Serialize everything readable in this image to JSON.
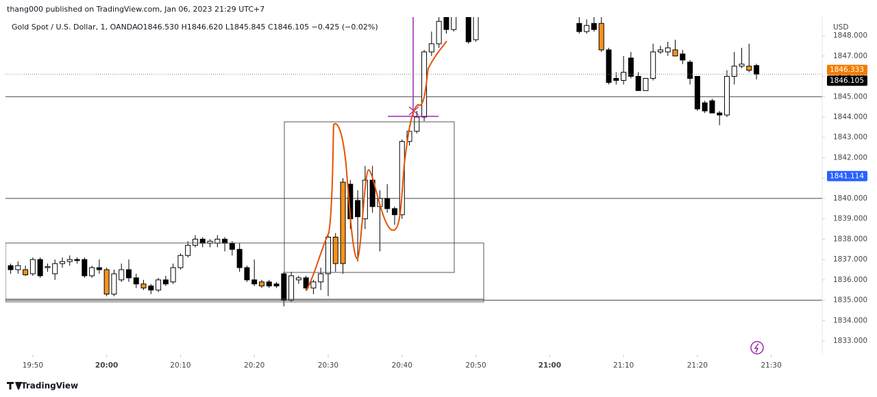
{
  "header": {
    "publisher": "thang000 published on TradingView.com, Jan 06, 2023 21:29 UTC+7",
    "symbol": "Gold Spot / U.S. Dollar, 1, OANDA",
    "ohlc": "O1846.530  H1846.620  L1845.845  C1846.105  −0.425 (−0.02%)"
  },
  "footer": {
    "brand": "TradingView"
  },
  "chart_data": {
    "type": "candlestick",
    "y_unit": "USD",
    "x": [
      1187,
      1188,
      1189,
      1190,
      1191,
      1192,
      1193,
      1194,
      1195,
      1196,
      1197,
      1198,
      1199,
      1200,
      1201,
      1202,
      1203,
      1204,
      1205,
      1206,
      1207,
      1208,
      1209,
      1210,
      1211,
      1212,
      1213,
      1214,
      1215,
      1216,
      1217,
      1218,
      1219,
      1220,
      1221,
      1222,
      1223,
      1224,
      1225,
      1226,
      1227,
      1228,
      1229,
      1230,
      1231,
      1232,
      1233,
      1234,
      1235,
      1236,
      1237,
      1238,
      1239,
      1240,
      1241,
      1242,
      1243,
      1244,
      1245,
      1246,
      1247,
      1249,
      1250,
      1264,
      1265,
      1266,
      1267,
      1268,
      1269,
      1270,
      1271,
      1272,
      1273,
      1274,
      1275,
      1276,
      1277,
      1278,
      1279,
      1280,
      1281,
      1282,
      1283,
      1284,
      1285,
      1286,
      1287,
      1288
    ],
    "open": [
      1836.7,
      1836.5,
      1836.5,
      1836.3,
      1837.0,
      1836.6,
      1836.3,
      1836.8,
      1836.9,
      1837.0,
      1837.0,
      1836.2,
      1836.6,
      1836.5,
      1835.3,
      1836.0,
      1836.5,
      1836.1,
      1835.8,
      1835.7,
      1835.5,
      1836.0,
      1835.9,
      1836.6,
      1837.2,
      1837.7,
      1838.0,
      1837.8,
      1837.8,
      1838.0,
      1837.8,
      1837.5,
      1836.6,
      1836.0,
      1835.9,
      1835.9,
      1835.8,
      1836.3,
      1835.0,
      1836.0,
      1836.1,
      1835.6,
      1835.9,
      1836.3,
      1838.1,
      1836.8,
      1840.7,
      1839.9,
      1839.0,
      1840.9,
      1839.6,
      1840.0,
      1839.5,
      1839.2,
      1842.8,
      1843.3,
      1844.0,
      1847.2,
      1847.6,
      1848.9,
      1848.3,
      1849.2,
      1847.8,
      1848.6,
      1848.2,
      1848.6,
      1848.6,
      1847.3,
      1845.9,
      1845.8,
      1846.9,
      1846.0,
      1845.3,
      1845.9,
      1847.2,
      1847.2,
      1847.3,
      1847.1,
      1846.7,
      1846.0,
      1844.7,
      1844.8,
      1844.2,
      1844.1,
      1846.0,
      1846.5,
      1846.5,
      1846.53
    ],
    "high": [
      1836.8,
      1836.9,
      1836.7,
      1837.1,
      1837.1,
      1836.8,
      1837.0,
      1837.1,
      1837.2,
      1837.1,
      1837.1,
      1836.7,
      1837.0,
      1836.6,
      1836.5,
      1836.8,
      1837.0,
      1836.3,
      1836.0,
      1835.8,
      1836.1,
      1836.2,
      1836.8,
      1837.3,
      1837.9,
      1838.2,
      1838.1,
      1838.0,
      1838.2,
      1838.1,
      1837.9,
      1837.8,
      1836.7,
      1837.0,
      1836.0,
      1836.0,
      1835.9,
      1836.4,
      1836.4,
      1836.2,
      1836.2,
      1836.0,
      1836.6,
      1838.2,
      1838.3,
      1841.0,
      1840.9,
      1840.4,
      1841.6,
      1841.6,
      1840.4,
      1840.7,
      1839.6,
      1842.9,
      1843.6,
      1844.3,
      1847.3,
      1848.2,
      1849.5,
      1849.5,
      1849.5,
      1849.5,
      1849.5,
      1849.0,
      1848.8,
      1849.0,
      1849.0,
      1847.4,
      1846.2,
      1847.0,
      1847.2,
      1846.2,
      1845.9,
      1847.6,
      1847.5,
      1847.7,
      1847.8,
      1847.3,
      1846.8,
      1846.0,
      1844.8,
      1844.9,
      1844.3,
      1846.3,
      1847.2,
      1847.4,
      1847.6,
      1846.62
    ],
    "low": [
      1836.3,
      1836.3,
      1836.2,
      1836.2,
      1836.1,
      1836.4,
      1836.0,
      1836.6,
      1836.7,
      1836.8,
      1836.1,
      1836.1,
      1836.3,
      1835.2,
      1835.2,
      1835.9,
      1835.9,
      1835.6,
      1835.5,
      1835.3,
      1835.4,
      1835.7,
      1835.8,
      1836.5,
      1837.1,
      1837.6,
      1837.6,
      1837.6,
      1837.6,
      1837.4,
      1837.2,
      1836.4,
      1835.9,
      1835.7,
      1835.6,
      1835.6,
      1835.6,
      1834.7,
      1834.9,
      1835.8,
      1835.5,
      1835.3,
      1835.5,
      1835.2,
      1836.4,
      1836.3,
      1838.5,
      1836.9,
      1838.5,
      1839.3,
      1837.4,
      1839.3,
      1838.7,
      1839.0,
      1842.6,
      1843.2,
      1843.8,
      1847.0,
      1847.4,
      1848.1,
      1848.2,
      1847.6,
      1847.7,
      1848.1,
      1848.1,
      1848.2,
      1847.2,
      1845.6,
      1845.6,
      1845.6,
      1845.9,
      1845.3,
      1845.3,
      1845.8,
      1847.1,
      1847.0,
      1847.0,
      1846.6,
      1845.6,
      1844.3,
      1844.2,
      1844.2,
      1843.6,
      1844.0,
      1845.6,
      1846.4,
      1846.2,
      1845.845
    ],
    "close": [
      1836.5,
      1836.7,
      1836.25,
      1837.0,
      1836.2,
      1836.65,
      1836.8,
      1836.9,
      1837.0,
      1836.95,
      1836.2,
      1836.6,
      1836.5,
      1835.3,
      1836.3,
      1836.5,
      1836.1,
      1835.8,
      1835.6,
      1835.5,
      1836.0,
      1835.8,
      1836.6,
      1837.2,
      1837.7,
      1838.0,
      1837.8,
      1837.9,
      1838.0,
      1837.8,
      1837.5,
      1836.6,
      1836.0,
      1835.8,
      1835.7,
      1835.7,
      1835.7,
      1835.0,
      1836.2,
      1836.1,
      1835.6,
      1835.9,
      1836.3,
      1838.1,
      1836.8,
      1840.8,
      1839.0,
      1839.1,
      1840.9,
      1839.6,
      1840.0,
      1839.5,
      1839.2,
      1842.8,
      1843.3,
      1844.0,
      1847.2,
      1847.6,
      1848.7,
      1848.3,
      1849.0,
      1847.7,
      1849.3,
      1848.2,
      1848.5,
      1848.3,
      1847.3,
      1845.7,
      1845.8,
      1846.2,
      1846.0,
      1845.3,
      1845.9,
      1847.2,
      1847.3,
      1847.4,
      1847.0,
      1846.8,
      1845.9,
      1844.4,
      1844.3,
      1844.2,
      1844.1,
      1846.0,
      1846.5,
      1846.6,
      1846.3,
      1846.105
    ],
    "up_color": "#ffffff",
    "down_color": "#000000",
    "highlight_color": "#f7931a",
    "highlighted": [
      2,
      13,
      18,
      34,
      44,
      45,
      66,
      76,
      86
    ],
    "xlim": [
      1186.3,
      1296.9
    ],
    "xticks": [
      {
        "value": 1190,
        "label": "19:50"
      },
      {
        "value": 1200,
        "label": "20:00"
      },
      {
        "value": 1210,
        "label": "20:10"
      },
      {
        "value": 1220,
        "label": "20:20"
      },
      {
        "value": 1230,
        "label": "20:30"
      },
      {
        "value": 1240,
        "label": "20:40"
      },
      {
        "value": 1250,
        "label": "20:50"
      },
      {
        "value": 1260,
        "label": "21:00"
      },
      {
        "value": 1270,
        "label": "21:10"
      },
      {
        "value": 1280,
        "label": "21:20"
      },
      {
        "value": 1290,
        "label": "21:30"
      }
    ],
    "ylim": [
      1832.33,
      1848.91
    ],
    "yticks": [
      {
        "value": 1833,
        "label": "1833.000"
      },
      {
        "value": 1834,
        "label": "1834.000"
      },
      {
        "value": 1835,
        "label": "1835.000"
      },
      {
        "value": 1836,
        "label": "1836.000"
      },
      {
        "value": 1837,
        "label": "1837.000"
      },
      {
        "value": 1838,
        "label": "1838.000"
      },
      {
        "value": 1839,
        "label": "1839.000"
      },
      {
        "value": 1840,
        "label": "1840.000"
      },
      {
        "value": 1841,
        "label": "1841.000"
      },
      {
        "value": 1842,
        "label": "1842.000"
      },
      {
        "value": 1843,
        "label": "1843.000"
      },
      {
        "value": 1844,
        "label": "1844.000"
      },
      {
        "value": 1845,
        "label": "1845.000"
      },
      {
        "value": 1846,
        "label": "1846.000"
      },
      {
        "value": 1847,
        "label": "1847.000"
      },
      {
        "value": 1848,
        "label": "1848.000"
      }
    ],
    "hlines": [
      1845,
      1840,
      1835
    ],
    "price_tags": [
      {
        "value": 1846.333,
        "label": "1846.333",
        "color": "#f57c00"
      },
      {
        "value": 1846.105,
        "label": "1846.105",
        "color": "#000000"
      },
      {
        "value": 1841.114,
        "label": "1841.114",
        "color": "#2962ff"
      }
    ]
  }
}
